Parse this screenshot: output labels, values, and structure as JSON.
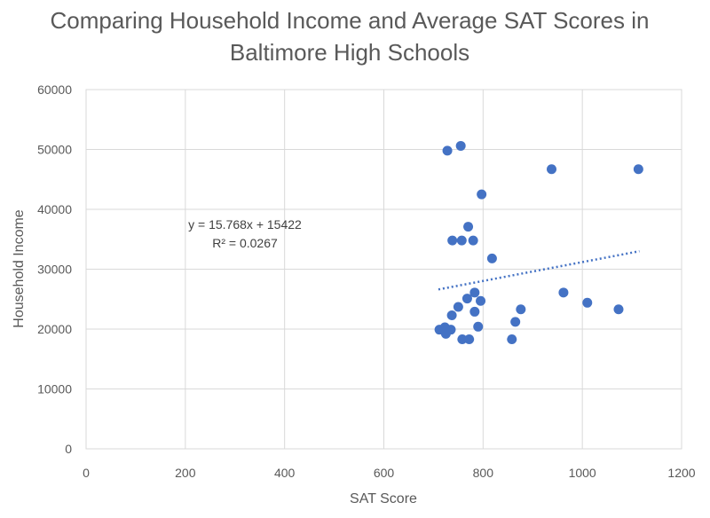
{
  "chart_data": {
    "type": "scatter",
    "title_line1": "Comparing Household Income and Average SAT Scores in",
    "title_line2": "Baltimore High Schools",
    "xlabel": "SAT Score",
    "ylabel": "Household Income",
    "xlim": [
      0,
      1200
    ],
    "ylim": [
      0,
      60000
    ],
    "xticks": [
      0,
      200,
      400,
      600,
      800,
      1000,
      1200
    ],
    "yticks": [
      0,
      10000,
      20000,
      30000,
      40000,
      50000,
      60000
    ],
    "grid": true,
    "marker_color": "#4472c4",
    "trendline": {
      "type": "linear",
      "equation": "y = 15.768x + 15422",
      "r_squared": "R² = 0.0267",
      "slope": 15.768,
      "intercept": 15422,
      "x_range": [
        710,
        1115
      ],
      "color": "#4472c4"
    },
    "points": [
      {
        "x": 728,
        "y": 49800
      },
      {
        "x": 755,
        "y": 50600
      },
      {
        "x": 938,
        "y": 46700
      },
      {
        "x": 1113,
        "y": 46700
      },
      {
        "x": 797,
        "y": 42500
      },
      {
        "x": 770,
        "y": 37100
      },
      {
        "x": 738,
        "y": 34800
      },
      {
        "x": 757,
        "y": 34800
      },
      {
        "x": 780,
        "y": 34800
      },
      {
        "x": 818,
        "y": 31800
      },
      {
        "x": 962,
        "y": 26100
      },
      {
        "x": 783,
        "y": 26100
      },
      {
        "x": 768,
        "y": 25100
      },
      {
        "x": 795,
        "y": 24700
      },
      {
        "x": 1010,
        "y": 24400
      },
      {
        "x": 750,
        "y": 23700
      },
      {
        "x": 876,
        "y": 23300
      },
      {
        "x": 1073,
        "y": 23300
      },
      {
        "x": 783,
        "y": 22900
      },
      {
        "x": 737,
        "y": 22300
      },
      {
        "x": 865,
        "y": 21200
      },
      {
        "x": 790,
        "y": 20400
      },
      {
        "x": 723,
        "y": 20300
      },
      {
        "x": 712,
        "y": 19900
      },
      {
        "x": 735,
        "y": 19900
      },
      {
        "x": 725,
        "y": 19200
      },
      {
        "x": 758,
        "y": 18300
      },
      {
        "x": 772,
        "y": 18300
      },
      {
        "x": 858,
        "y": 18300
      }
    ]
  }
}
